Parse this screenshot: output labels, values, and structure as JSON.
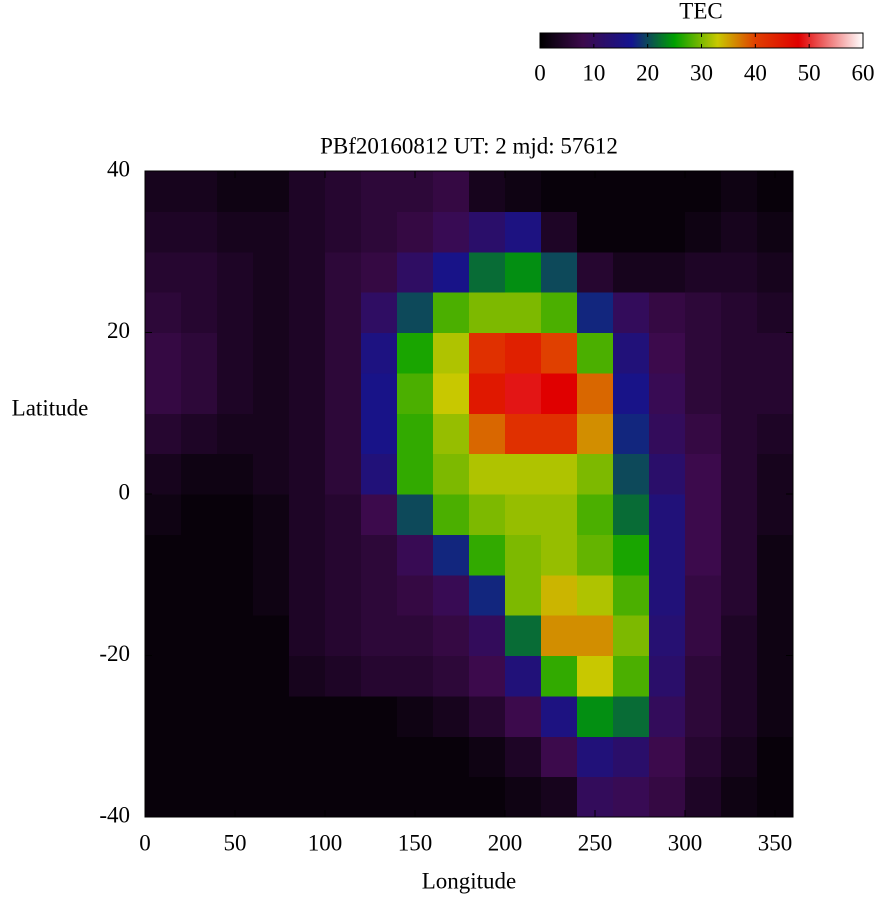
{
  "chart_data": {
    "type": "heatmap",
    "title": "PBf20160812  UT: 2  mjd: 57612",
    "x_label": "Longitude",
    "y_label": "Latitude",
    "xlim": [
      0,
      360
    ],
    "xticks": [
      0,
      50,
      100,
      150,
      200,
      250,
      300,
      350
    ],
    "ylim": [
      -40,
      40
    ],
    "yticks": [
      -40,
      -20,
      0,
      20,
      40
    ],
    "xbins": [
      0,
      20,
      40,
      60,
      80,
      100,
      120,
      140,
      160,
      180,
      200,
      220,
      240,
      260,
      280,
      300,
      320,
      340,
      360
    ],
    "ybins": [
      -40,
      -35,
      -30,
      -25,
      -20,
      -15,
      -10,
      -5,
      0,
      5,
      10,
      15,
      20,
      25,
      30,
      35,
      40
    ],
    "z": [
      [
        1,
        1,
        1,
        1,
        1,
        1,
        1,
        1,
        1,
        1,
        2,
        3,
        10,
        9,
        7,
        4,
        2,
        1
      ],
      [
        1,
        1,
        1,
        1,
        1,
        1,
        1,
        1,
        1,
        2,
        4,
        8,
        14,
        12,
        8,
        5,
        3,
        1
      ],
      [
        1,
        1,
        1,
        1,
        1,
        1,
        1,
        2,
        3,
        5,
        8,
        15,
        24,
        22,
        10,
        6,
        4,
        2
      ],
      [
        1,
        1,
        1,
        1,
        3,
        4,
        5,
        5,
        6,
        8,
        14,
        27,
        33,
        28,
        12,
        6,
        4,
        2
      ],
      [
        1,
        1,
        1,
        1,
        4,
        5,
        6,
        6,
        7,
        10,
        22,
        36,
        36,
        30,
        13,
        7,
        4,
        2
      ],
      [
        1,
        1,
        1,
        2,
        4,
        5,
        6,
        7,
        9,
        18,
        30,
        34,
        32,
        28,
        14,
        7,
        5,
        2
      ],
      [
        1,
        1,
        1,
        2,
        4,
        5,
        6,
        9,
        18,
        27,
        30,
        31,
        29,
        26,
        14,
        8,
        5,
        2
      ],
      [
        2,
        1,
        1,
        2,
        4,
        5,
        8,
        20,
        28,
        30,
        31,
        31,
        28,
        22,
        14,
        8,
        5,
        3
      ],
      [
        3,
        2,
        2,
        3,
        4,
        6,
        14,
        27,
        30,
        32,
        32,
        32,
        30,
        20,
        12,
        8,
        5,
        3
      ],
      [
        5,
        4,
        3,
        3,
        4,
        6,
        16,
        27,
        31,
        38,
        42,
        42,
        36,
        18,
        10,
        7,
        5,
        4
      ],
      [
        7,
        6,
        4,
        3,
        4,
        6,
        16,
        28,
        33,
        45,
        49,
        48,
        38,
        16,
        9,
        6,
        5,
        5
      ],
      [
        7,
        6,
        4,
        3,
        4,
        6,
        15,
        26,
        32,
        42,
        44,
        40,
        28,
        14,
        8,
        6,
        5,
        5
      ],
      [
        6,
        5,
        4,
        3,
        4,
        6,
        11,
        20,
        28,
        30,
        30,
        28,
        18,
        10,
        7,
        6,
        5,
        4
      ],
      [
        5,
        5,
        4,
        3,
        4,
        6,
        7,
        11,
        16,
        22,
        24,
        20,
        5,
        3,
        3,
        4,
        4,
        3
      ],
      [
        4,
        4,
        3,
        3,
        4,
        5,
        6,
        7,
        9,
        12,
        15,
        4,
        1,
        1,
        1,
        2,
        3,
        2
      ],
      [
        3,
        3,
        2,
        2,
        4,
        5,
        6,
        6,
        7,
        3,
        2,
        1,
        1,
        1,
        1,
        1,
        2,
        1
      ]
    ],
    "colorbar_title": "TEC",
    "cblim": [
      0,
      60
    ],
    "cbticks": [
      0,
      10,
      20,
      30,
      40,
      50,
      60
    ],
    "colorscale": [
      [
        0,
        "#000000"
      ],
      [
        8,
        "#3c0a4c"
      ],
      [
        17,
        "#141490"
      ],
      [
        25,
        "#00a000"
      ],
      [
        33,
        "#c8c800"
      ],
      [
        40,
        "#e04000"
      ],
      [
        48,
        "#e00000"
      ],
      [
        60,
        "#ffffff"
      ]
    ]
  }
}
